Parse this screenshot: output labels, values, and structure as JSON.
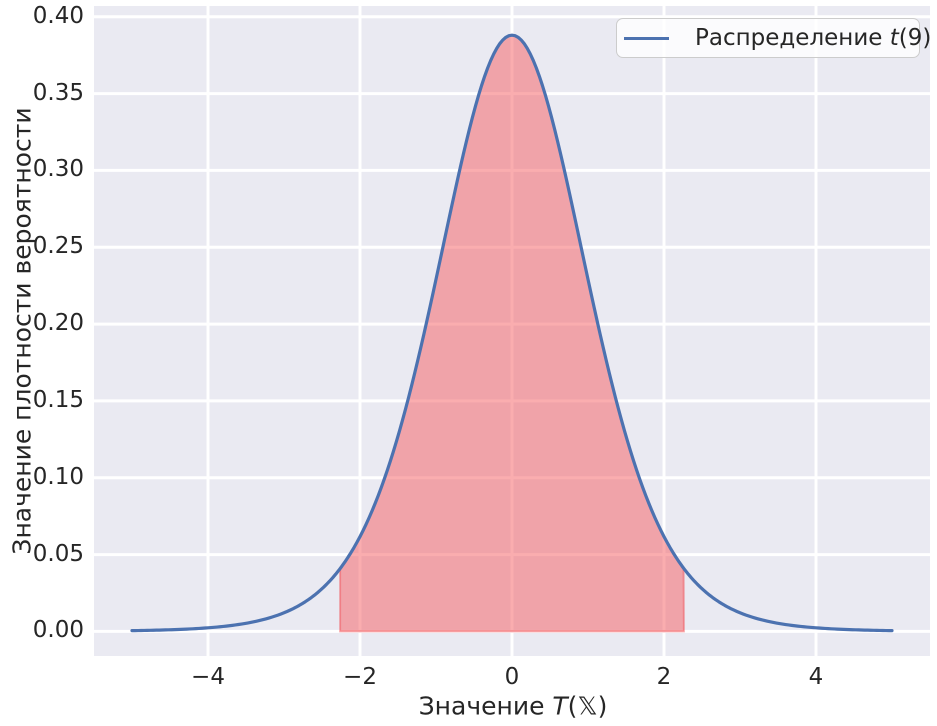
{
  "figure": {
    "background": "#ffffff",
    "plot_background": "#eaeaf2",
    "grid_color": "#ffffff",
    "text_color": "#262626"
  },
  "chart_data": {
    "type": "line",
    "title": "",
    "xlabel": {
      "before": "Значение ",
      "var": "T",
      "open_paren": "(",
      "set_symbol": "𝕏",
      "close_paren": ")"
    },
    "ylabel": "Значение плотности вероятности",
    "xlim": [
      -5.5,
      5.5
    ],
    "ylim": [
      -0.016,
      0.407
    ],
    "grid": true,
    "xticks": [
      {
        "label": "−4",
        "value": -4
      },
      {
        "label": "−2",
        "value": -2
      },
      {
        "label": "0",
        "value": 0
      },
      {
        "label": "2",
        "value": 2
      },
      {
        "label": "4",
        "value": 4
      }
    ],
    "yticks": [
      {
        "label": "0.00",
        "value": 0.0
      },
      {
        "label": "0.05",
        "value": 0.05
      },
      {
        "label": "0.10",
        "value": 0.1
      },
      {
        "label": "0.15",
        "value": 0.15
      },
      {
        "label": "0.20",
        "value": 0.2
      },
      {
        "label": "0.25",
        "value": 0.25
      },
      {
        "label": "0.30",
        "value": 0.3
      },
      {
        "label": "0.35",
        "value": 0.35
      },
      {
        "label": "0.40",
        "value": 0.4
      }
    ],
    "legend": {
      "position": "upper right",
      "label_before": "Распределение ",
      "label_var": "t",
      "label_after": "(9)"
    },
    "series": [
      {
        "name": "Распределение t(9)",
        "distribution": "student-t",
        "df": 9,
        "peak_pdf": 0.38803,
        "x_range": [
          -5,
          5
        ],
        "color": "#4c72b0",
        "line_width": 3.2,
        "sample_points": {
          "x": [
            -5,
            -4,
            -3,
            -2,
            -1,
            0,
            1,
            2,
            3,
            4,
            5
          ],
          "y": [
            0.0005,
            0.0024,
            0.0121,
            0.0617,
            0.2291,
            0.388,
            0.2291,
            0.0617,
            0.0121,
            0.0024,
            0.0005
          ]
        }
      }
    ],
    "shaded_region": {
      "x_from": -2.262,
      "x_to": 2.262,
      "fill_color": "rgba(246,92,96,0.50)",
      "edge_color": "rgba(240,75,82,0.45)"
    }
  }
}
